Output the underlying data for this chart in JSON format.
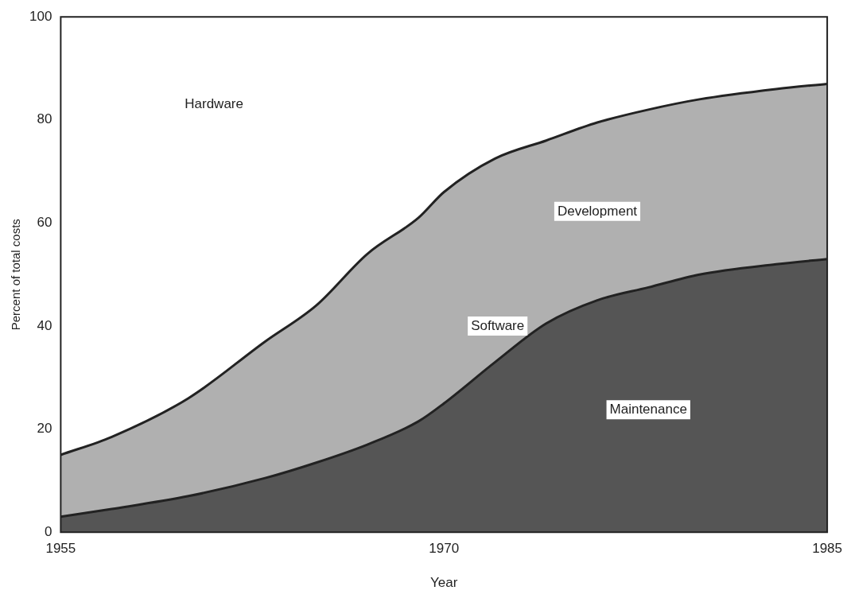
{
  "chart_data": {
    "type": "area",
    "stacked": true,
    "xlabel": "Year",
    "ylabel": "Percent of total costs",
    "x": [
      1955,
      1957,
      1960,
      1963,
      1965,
      1967,
      1969,
      1970,
      1972,
      1974,
      1976,
      1978,
      1980,
      1983,
      1985
    ],
    "xlim": [
      1955,
      1985
    ],
    "xticks": [
      1955,
      1970,
      1985
    ],
    "ylim": [
      0,
      100
    ],
    "yticks": [
      0,
      20,
      40,
      60,
      80,
      100
    ],
    "grid": false,
    "legend": false,
    "series": [
      {
        "name": "Maintenance",
        "color": "#555555",
        "values": [
          3,
          4.5,
          7,
          10.5,
          13.5,
          17,
          21.5,
          25,
          33,
          40.5,
          45,
          47.5,
          50,
          52,
          53
        ]
      },
      {
        "name": "Development",
        "color": "#b0b0b0",
        "values": [
          12,
          14,
          19,
          26.5,
          30.5,
          37,
          39.5,
          41,
          39.5,
          35.5,
          34.5,
          34.5,
          34,
          34,
          34
        ]
      }
    ],
    "annotations": [
      "Hardware",
      "Software"
    ]
  }
}
